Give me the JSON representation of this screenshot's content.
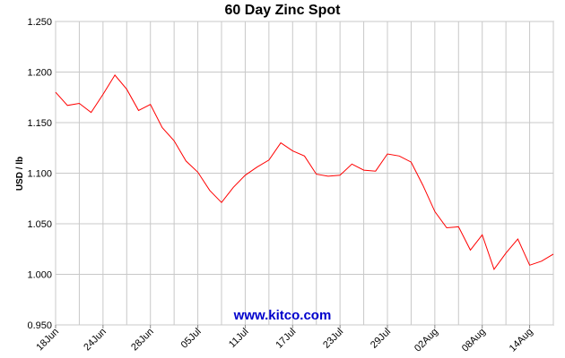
{
  "chart_data": {
    "type": "line",
    "title": "60 Day Zinc Spot",
    "y_label": "USD / lb",
    "watermark": "www.kitco.com",
    "categories": [
      "18Jun",
      null,
      null,
      null,
      "24Jun",
      null,
      null,
      null,
      "28Jun",
      null,
      null,
      null,
      "05Jul",
      null,
      null,
      null,
      "11Jul",
      null,
      null,
      null,
      "17Jul",
      null,
      null,
      null,
      "23Jul",
      null,
      null,
      null,
      "29Jul",
      null,
      null,
      null,
      "02Aug",
      null,
      null,
      null,
      "08Aug",
      null,
      null,
      null,
      "14Aug",
      null,
      null
    ],
    "series": [
      {
        "name": "Zinc",
        "color": "#ff0000",
        "values": [
          1.18,
          1.167,
          1.169,
          1.16,
          1.178,
          1.197,
          1.183,
          1.162,
          1.168,
          1.145,
          1.132,
          1.112,
          1.101,
          1.083,
          1.071,
          1.086,
          1.098,
          1.106,
          1.113,
          1.13,
          1.122,
          1.117,
          1.099,
          1.097,
          1.098,
          1.109,
          1.103,
          1.102,
          1.119,
          1.117,
          1.111,
          1.088,
          1.062,
          1.046,
          1.047,
          1.024,
          1.039,
          1.005,
          1.021,
          1.035,
          1.009,
          1.013,
          1.02
        ]
      }
    ],
    "ylim": [
      0.95,
      1.25
    ],
    "yticks": [
      {
        "value": 0.95,
        "label": "0.950"
      },
      {
        "value": 1.0,
        "label": "1.000"
      },
      {
        "value": 1.05,
        "label": "1.050"
      },
      {
        "value": 1.1,
        "label": "1.100"
      },
      {
        "value": 1.15,
        "label": "1.150"
      },
      {
        "value": 1.2,
        "label": "1.200"
      },
      {
        "value": 1.25,
        "label": "1.250"
      }
    ],
    "grid": true
  }
}
